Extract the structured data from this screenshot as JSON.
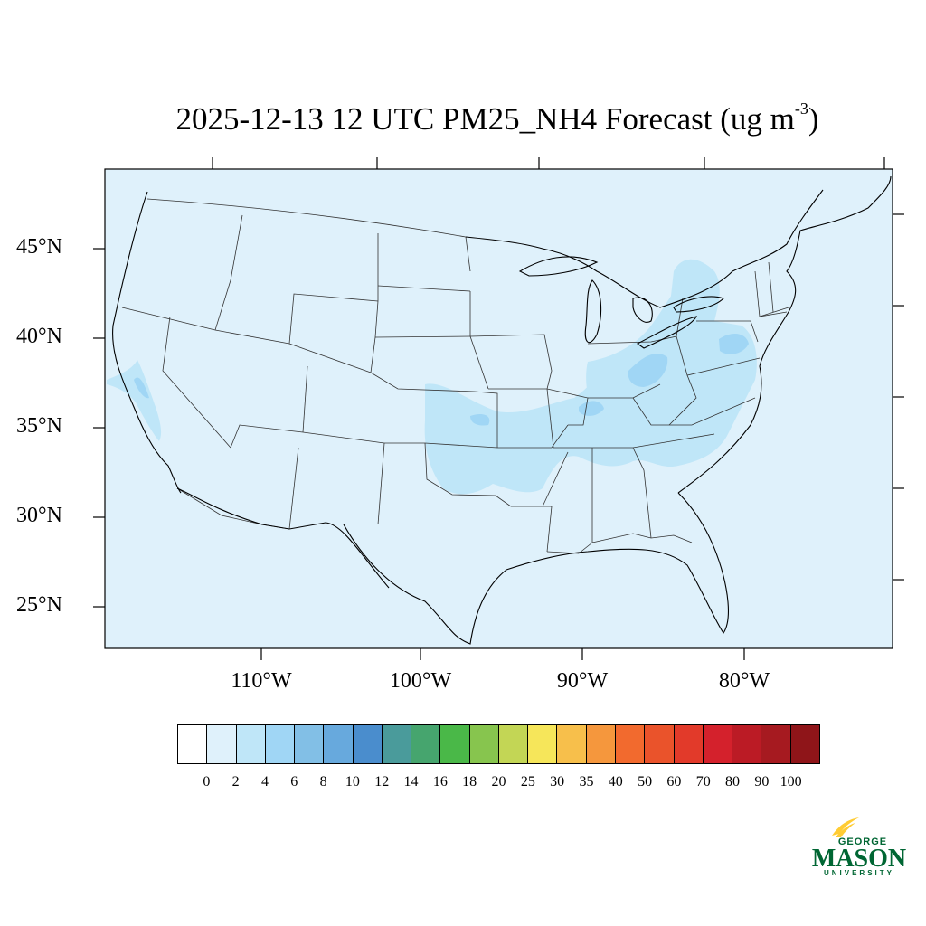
{
  "title": {
    "main": "2025-12-13 12 UTC PM25_NH4 Forecast (ug m",
    "sup": "-3",
    "close": ")"
  },
  "axes": {
    "lat_labels": [
      "45°N",
      "40°N",
      "35°N",
      "30°N",
      "25°N"
    ],
    "lon_labels": [
      "110°W",
      "100°W",
      "90°W",
      "80°W"
    ]
  },
  "colorbar": {
    "labels": [
      "0",
      "2",
      "4",
      "6",
      "8",
      "10",
      "12",
      "14",
      "16",
      "18",
      "20",
      "25",
      "30",
      "35",
      "40",
      "50",
      "60",
      "70",
      "80",
      "90",
      "100"
    ],
    "colors": [
      "#ffffff",
      "#dff1fb",
      "#bfe6f8",
      "#a0d6f5",
      "#82bfe6",
      "#67a9dd",
      "#4a8dcd",
      "#4a9b9b",
      "#46a56e",
      "#4ab848",
      "#87c54e",
      "#c3d655",
      "#f6e65a",
      "#f7bf4b",
      "#f5973d",
      "#f26a2e",
      "#ea532b",
      "#e23a2a",
      "#d4212c",
      "#bb1b25",
      "#a61a20",
      "#8f1519"
    ]
  },
  "map": {
    "background_color": "#dff1fb",
    "enhanced_color": "#bfe6f8",
    "peak_color": "#a0d6f5"
  },
  "logo": {
    "line1": "GEORGE",
    "line2": "MASON",
    "line3": "UNIVERSITY",
    "green": "#006633",
    "gold": "#ffcc33"
  }
}
